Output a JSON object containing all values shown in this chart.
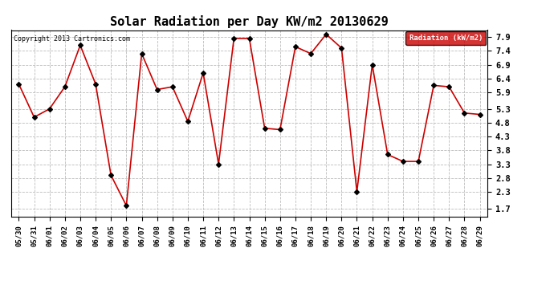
{
  "title": "Solar Radiation per Day KW/m2 20130629",
  "copyright": "Copyright 2013 Cartronics.com",
  "legend_label": "Radiation (kW/m2)",
  "dates": [
    "05/30",
    "05/31",
    "06/01",
    "06/02",
    "06/03",
    "06/04",
    "06/05",
    "06/06",
    "06/07",
    "06/08",
    "06/09",
    "06/10",
    "06/11",
    "06/12",
    "06/13",
    "06/14",
    "06/15",
    "06/16",
    "06/17",
    "06/18",
    "06/19",
    "06/20",
    "06/21",
    "06/22",
    "06/23",
    "06/24",
    "06/25",
    "06/26",
    "06/27",
    "06/28",
    "06/29"
  ],
  "values": [
    6.2,
    5.0,
    5.3,
    6.1,
    7.6,
    6.2,
    2.9,
    1.8,
    7.3,
    6.0,
    6.1,
    4.85,
    6.6,
    3.3,
    7.85,
    7.85,
    4.6,
    4.55,
    7.55,
    7.3,
    8.0,
    7.5,
    2.3,
    6.9,
    3.65,
    3.4,
    3.4,
    6.15,
    6.1,
    5.15,
    5.1
  ],
  "line_color": "#cc0000",
  "marker_color": "#000000",
  "bg_color": "#ffffff",
  "grid_color": "#bbbbbb",
  "yticks": [
    1.7,
    2.3,
    2.8,
    3.3,
    3.8,
    4.3,
    4.8,
    5.3,
    5.9,
    6.4,
    6.9,
    7.4,
    7.9
  ],
  "ylim": [
    1.4,
    8.15
  ],
  "title_fontsize": 11,
  "legend_bg": "#cc0000",
  "legend_text_color": "#ffffff"
}
